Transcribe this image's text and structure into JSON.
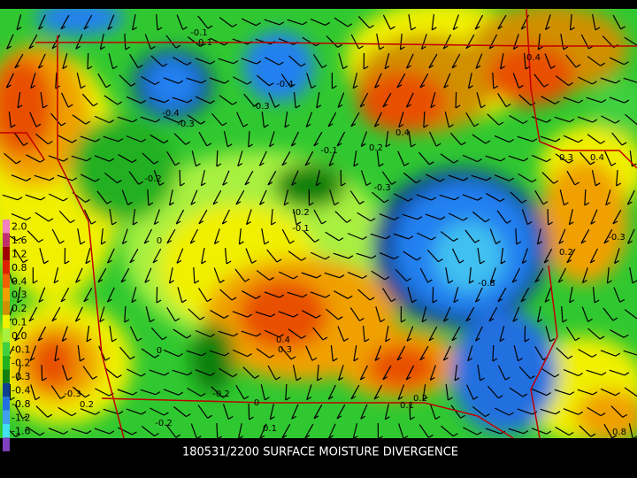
{
  "title": "180531/2200 SURFACE MOISTURE DIVERGENCE",
  "legend": [
    {
      "label": "2.0",
      "color": "#f080c0"
    },
    {
      "label": "1.6",
      "color": "#c03070"
    },
    {
      "label": "1.2",
      "color": "#a00000"
    },
    {
      "label": "0.8",
      "color": "#e02000"
    },
    {
      "label": "0.4",
      "color": "#f06000"
    },
    {
      "label": "0.3",
      "color": "#f0a000"
    },
    {
      "label": "0.2",
      "color": "#d09000"
    },
    {
      "label": "0.1",
      "color": "#f0f000"
    },
    {
      "label": "0.0",
      "color": "#a8f040"
    },
    {
      "label": "-0.1",
      "color": "#40d040"
    },
    {
      "label": "-0.2",
      "color": "#20b020"
    },
    {
      "label": "-0.3",
      "color": "#108010"
    },
    {
      "label": "-0.4",
      "color": "#104090"
    },
    {
      "label": "-0.8",
      "color": "#2070e0"
    },
    {
      "label": "-1.2",
      "color": "#40a0f0"
    },
    {
      "label": "-1.6",
      "color": "#40e0f0"
    },
    {
      "label": null,
      "color": "#8040c0"
    }
  ],
  "contour_labels": [
    "-0.1",
    "0.1",
    "-0.4",
    "-0.3",
    "-0.4",
    "-0.3",
    "0.4",
    "0.4",
    "0.2",
    "-0.1",
    "-0.2",
    "-0.3",
    "-0.2",
    "-0.1",
    "0",
    "-0.8",
    "0.4",
    "0.3",
    "0.2",
    "-0.3",
    "-0.3",
    "0.2",
    "0",
    "0.2",
    "0.1",
    "-0.2",
    "0",
    "0.1",
    "-0.2",
    "0.8",
    "0.3",
    "0.4"
  ]
}
